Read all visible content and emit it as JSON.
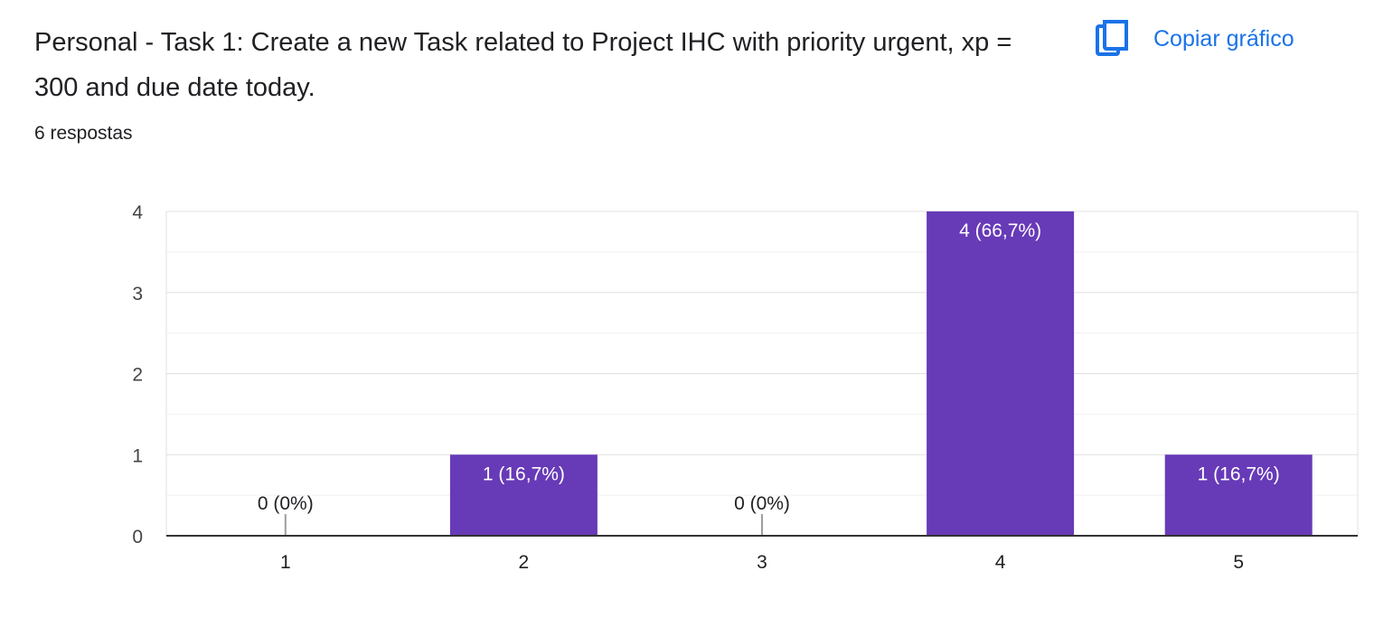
{
  "question": {
    "title": "Personal - Task 1: Create a new Task related to Project IHC with priority urgent, xp = 300 and due date today.",
    "response_count": "6 respostas"
  },
  "actions": {
    "copy_chart_label": "Copiar gráfico",
    "copy_chart_icon": "copy-icon"
  },
  "colors": {
    "bar": "#673ab7",
    "accent": "#1a73e8",
    "text": "#202124"
  },
  "chart_data": {
    "type": "bar",
    "categories": [
      "1",
      "2",
      "3",
      "4",
      "5"
    ],
    "values": [
      0,
      1,
      0,
      4,
      1
    ],
    "data_labels": [
      "0 (0%)",
      "1 (16,7%)",
      "0 (0%)",
      "4 (66,7%)",
      "1 (16,7%)"
    ],
    "ylim": [
      0,
      4
    ],
    "yticks": [
      "0",
      "1",
      "2",
      "3",
      "4"
    ],
    "grid": true,
    "title": "",
    "xlabel": "",
    "ylabel": ""
  }
}
